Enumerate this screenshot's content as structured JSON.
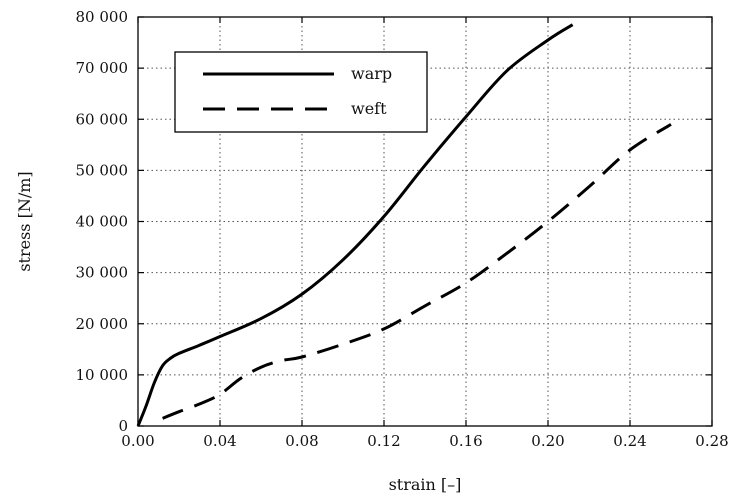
{
  "chart_data": {
    "type": "line",
    "xlabel": "strain [–]",
    "ylabel": "stress [N/m]",
    "xlim": [
      0,
      0.28
    ],
    "ylim": [
      0,
      80000
    ],
    "x_ticks": [
      0,
      0.04,
      0.08,
      0.12,
      0.16,
      0.2,
      0.24,
      0.28
    ],
    "x_tick_labels": [
      "0.00",
      "0.04",
      "0.08",
      "0.12",
      "0.16",
      "0.20",
      "0.24",
      "0.28"
    ],
    "y_ticks": [
      0,
      10000,
      20000,
      30000,
      40000,
      50000,
      60000,
      70000,
      80000
    ],
    "y_tick_labels": [
      "0",
      "10 000",
      "20 000",
      "30 000",
      "40 000",
      "50 000",
      "60 000",
      "70 000",
      "80 000"
    ],
    "grid": true,
    "legend": {
      "placement": "top-left"
    },
    "series": [
      {
        "name": "warp",
        "style": "solid",
        "x": [
          0.0,
          0.004,
          0.008,
          0.012,
          0.016,
          0.02,
          0.03,
          0.04,
          0.06,
          0.08,
          0.1,
          0.12,
          0.14,
          0.16,
          0.18,
          0.2,
          0.212
        ],
        "y": [
          0,
          4000,
          8500,
          11800,
          13300,
          14200,
          15800,
          17500,
          21000,
          25800,
          32500,
          41000,
          51000,
          60500,
          69500,
          75500,
          78500
        ]
      },
      {
        "name": "weft",
        "style": "dashed",
        "x": [
          0.012,
          0.02,
          0.03,
          0.04,
          0.05,
          0.06,
          0.07,
          0.08,
          0.1,
          0.12,
          0.14,
          0.16,
          0.18,
          0.2,
          0.22,
          0.24,
          0.26
        ],
        "y": [
          1500,
          2800,
          4300,
          6200,
          9300,
          11500,
          12800,
          13500,
          16000,
          19000,
          23500,
          28000,
          33800,
          40000,
          46800,
          54000,
          59000
        ]
      }
    ]
  }
}
